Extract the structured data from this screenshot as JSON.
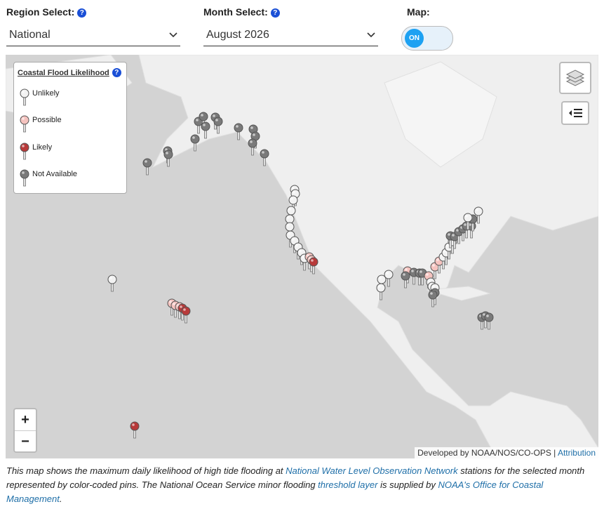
{
  "controls": {
    "help_icon": "?",
    "region": {
      "label": "Region Select:",
      "value": "National"
    },
    "month": {
      "label": "Month Select:",
      "value": "August 2026"
    },
    "map": {
      "label": "Map:",
      "toggle": "ON"
    }
  },
  "legend": {
    "title": "Coastal Flood Likelihood",
    "items": [
      "Unlikely",
      "Possible",
      "Likely",
      "Not Available"
    ]
  },
  "zoom": {
    "in": "+",
    "out": "−"
  },
  "attribution": {
    "text": "Developed by NOAA/NOS/CO-OPS |",
    "link": "Attribution"
  },
  "caption": {
    "parts": [
      "This map shows the maximum daily likelihood of high tide flooding at ",
      "National Water Level Observation Network",
      " stations for the selected month represented by color-coded pins. The National Ocean Service minor flooding ",
      "threshold layer",
      " is supplied by ",
      "NOAA's Office for Coastal Management",
      "."
    ]
  }
}
